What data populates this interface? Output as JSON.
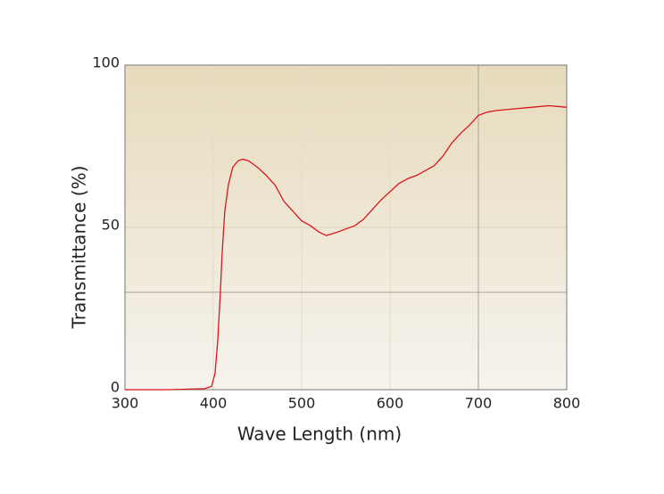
{
  "chart_data": {
    "type": "line",
    "x_label": "Wave Length (nm)",
    "y_label": "Transmittance (%)",
    "x": [
      300,
      350,
      390,
      398,
      402,
      405,
      408,
      410,
      413,
      417,
      422,
      428,
      433,
      440,
      450,
      460,
      470,
      480,
      490,
      500,
      510,
      520,
      528,
      540,
      550,
      560,
      570,
      580,
      590,
      600,
      610,
      620,
      630,
      640,
      650,
      660,
      670,
      680,
      690,
      700,
      710,
      720,
      740,
      760,
      780,
      800
    ],
    "series": [
      {
        "color": "#d9161c",
        "values": [
          0,
          0,
          0.3,
          1,
          5,
          15,
          30,
          42,
          55,
          63,
          68.5,
          70.5,
          71,
          70.5,
          68.5,
          66,
          63,
          58,
          55,
          52,
          50.5,
          48.5,
          47.5,
          48.5,
          49.5,
          50.5,
          52.5,
          55.5,
          58.5,
          61,
          63.5,
          65,
          66,
          67.5,
          69,
          72,
          76,
          79,
          81.5,
          84.5,
          85.5,
          86,
          86.5,
          87,
          87.5,
          87
        ]
      }
    ],
    "xlim": [
      300,
      800
    ],
    "ylim": [
      0,
      100
    ],
    "xticks": [
      300,
      400,
      500,
      600,
      700,
      800
    ],
    "yticks": [
      0,
      50,
      100
    ],
    "guide_lines": {
      "x": [
        700
      ],
      "y": [
        30
      ]
    },
    "grid": true
  }
}
